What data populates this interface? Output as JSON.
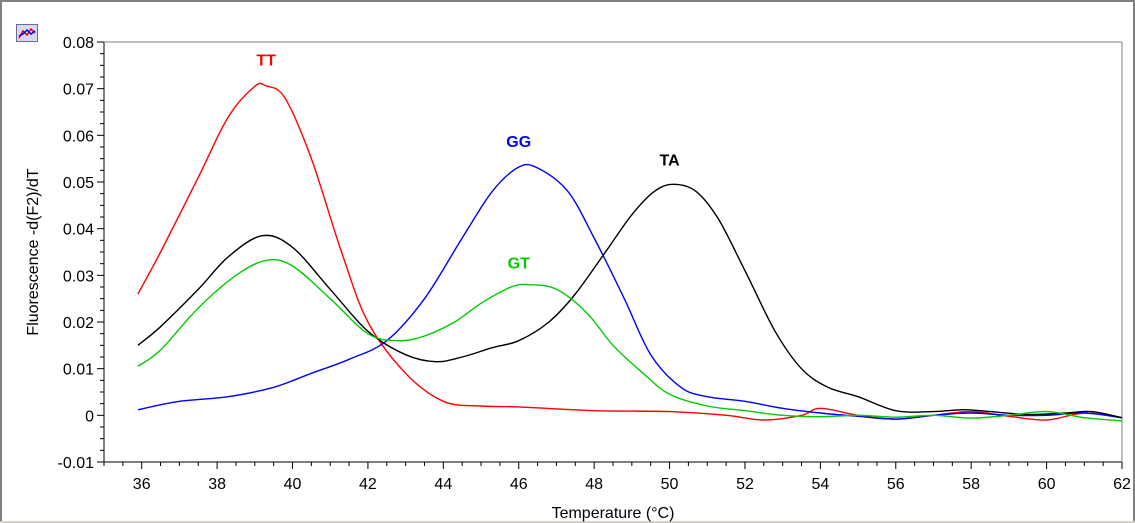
{
  "chart_data": {
    "type": "line",
    "title": "",
    "xlabel": "Temperature (°C)",
    "ylabel": "Fluorescence -d(F2)/dT",
    "xlim": [
      35,
      62
    ],
    "ylim": [
      -0.01,
      0.08
    ],
    "x_ticks": [
      36,
      38,
      40,
      42,
      44,
      46,
      48,
      50,
      52,
      54,
      56,
      58,
      60,
      62
    ],
    "y_ticks": [
      -0.01,
      0,
      0.01,
      0.02,
      0.03,
      0.04,
      0.05,
      0.06,
      0.07,
      0.08
    ],
    "x_tick_labels": [
      "36",
      "38",
      "40",
      "42",
      "44",
      "46",
      "48",
      "50",
      "52",
      "54",
      "56",
      "58",
      "60",
      "62"
    ],
    "y_tick_labels": [
      "-0.01",
      "0",
      "0.01",
      "0.02",
      "0.03",
      "0.04",
      "0.05",
      "0.06",
      "0.07",
      "0.08"
    ],
    "grid": false,
    "legend": "none",
    "series": [
      {
        "name": "TT",
        "color": "#ff0000",
        "label_at": [
          39.3,
          0.075
        ],
        "points": [
          [
            35.9,
            0.026
          ],
          [
            36.5,
            0.035
          ],
          [
            37.5,
            0.051
          ],
          [
            38.3,
            0.064
          ],
          [
            39.0,
            0.0705
          ],
          [
            39.3,
            0.0706
          ],
          [
            39.8,
            0.068
          ],
          [
            40.5,
            0.055
          ],
          [
            41.3,
            0.035
          ],
          [
            42.0,
            0.02
          ],
          [
            43.0,
            0.009
          ],
          [
            44.0,
            0.003
          ],
          [
            45.0,
            0.002
          ],
          [
            46.0,
            0.0018
          ],
          [
            48.0,
            0.001
          ],
          [
            50.0,
            0.0008
          ],
          [
            51.5,
            0.0
          ],
          [
            52.5,
            -0.001
          ],
          [
            53.5,
            0.0
          ],
          [
            54.0,
            0.0015
          ],
          [
            55.0,
            0.0
          ],
          [
            56.0,
            -0.0008
          ],
          [
            57.0,
            0.0
          ],
          [
            58.0,
            0.0008
          ],
          [
            59.0,
            -0.0002
          ],
          [
            60.0,
            -0.001
          ],
          [
            61.0,
            0.0005
          ],
          [
            62.0,
            -0.0005
          ]
        ]
      },
      {
        "name": "GG",
        "color": "#0000ff",
        "label_at": [
          46.0,
          0.0575
        ],
        "points": [
          [
            35.9,
            0.0012
          ],
          [
            37.0,
            0.003
          ],
          [
            38.3,
            0.004
          ],
          [
            39.5,
            0.006
          ],
          [
            40.5,
            0.009
          ],
          [
            41.5,
            0.012
          ],
          [
            42.5,
            0.016
          ],
          [
            43.5,
            0.025
          ],
          [
            44.5,
            0.038
          ],
          [
            45.3,
            0.048
          ],
          [
            46.0,
            0.0532
          ],
          [
            46.5,
            0.053
          ],
          [
            47.3,
            0.048
          ],
          [
            48.0,
            0.038
          ],
          [
            48.8,
            0.025
          ],
          [
            49.5,
            0.013
          ],
          [
            50.3,
            0.006
          ],
          [
            51.0,
            0.004
          ],
          [
            52.0,
            0.003
          ],
          [
            53.0,
            0.0015
          ],
          [
            54.0,
            0.0005
          ],
          [
            55.0,
            -0.0002
          ],
          [
            56.0,
            -0.0008
          ],
          [
            57.0,
            0.0
          ],
          [
            58.0,
            0.0005
          ],
          [
            59.0,
            0.0
          ],
          [
            60.0,
            0.0
          ],
          [
            61.0,
            0.0005
          ],
          [
            62.0,
            -0.0005
          ]
        ]
      },
      {
        "name": "TA",
        "color": "#000000",
        "label_at": [
          50.0,
          0.0535
        ],
        "points": [
          [
            35.9,
            0.015
          ],
          [
            36.5,
            0.019
          ],
          [
            37.5,
            0.027
          ],
          [
            38.3,
            0.034
          ],
          [
            39.2,
            0.0385
          ],
          [
            40.0,
            0.036
          ],
          [
            41.0,
            0.027
          ],
          [
            42.0,
            0.018
          ],
          [
            43.0,
            0.013
          ],
          [
            43.8,
            0.0115
          ],
          [
            44.5,
            0.0125
          ],
          [
            45.3,
            0.0145
          ],
          [
            46.0,
            0.016
          ],
          [
            46.8,
            0.02
          ],
          [
            47.5,
            0.026
          ],
          [
            48.3,
            0.035
          ],
          [
            49.0,
            0.043
          ],
          [
            49.6,
            0.048
          ],
          [
            50.1,
            0.0495
          ],
          [
            50.7,
            0.048
          ],
          [
            51.3,
            0.042
          ],
          [
            52.0,
            0.031
          ],
          [
            52.8,
            0.018
          ],
          [
            53.5,
            0.01
          ],
          [
            54.2,
            0.006
          ],
          [
            55.0,
            0.004
          ],
          [
            56.0,
            0.001
          ],
          [
            57.0,
            0.0008
          ],
          [
            57.8,
            0.0012
          ],
          [
            58.5,
            0.0008
          ],
          [
            59.5,
            0.0002
          ],
          [
            60.5,
            0.0005
          ],
          [
            61.2,
            0.0008
          ],
          [
            62.0,
            -0.0005
          ]
        ]
      },
      {
        "name": "GT",
        "color": "#00cc00",
        "label_at": [
          46.0,
          0.0315
        ],
        "points": [
          [
            35.9,
            0.0105
          ],
          [
            36.5,
            0.014
          ],
          [
            37.5,
            0.023
          ],
          [
            38.5,
            0.03
          ],
          [
            39.3,
            0.0332
          ],
          [
            40.0,
            0.032
          ],
          [
            41.0,
            0.025
          ],
          [
            42.0,
            0.0175
          ],
          [
            42.8,
            0.016
          ],
          [
            43.5,
            0.017
          ],
          [
            44.3,
            0.02
          ],
          [
            45.0,
            0.024
          ],
          [
            45.8,
            0.0275
          ],
          [
            46.3,
            0.028
          ],
          [
            47.0,
            0.027
          ],
          [
            47.8,
            0.022
          ],
          [
            48.5,
            0.015
          ],
          [
            49.3,
            0.009
          ],
          [
            50.0,
            0.0045
          ],
          [
            51.0,
            0.002
          ],
          [
            52.0,
            0.001
          ],
          [
            53.0,
            0.0
          ],
          [
            54.0,
            -0.0003
          ],
          [
            55.0,
            0.0
          ],
          [
            56.0,
            -0.0004
          ],
          [
            57.0,
            0.0
          ],
          [
            58.0,
            -0.0006
          ],
          [
            59.0,
            0.0
          ],
          [
            60.0,
            0.0008
          ],
          [
            61.0,
            -0.0005
          ],
          [
            62.0,
            -0.0012
          ]
        ]
      }
    ]
  }
}
